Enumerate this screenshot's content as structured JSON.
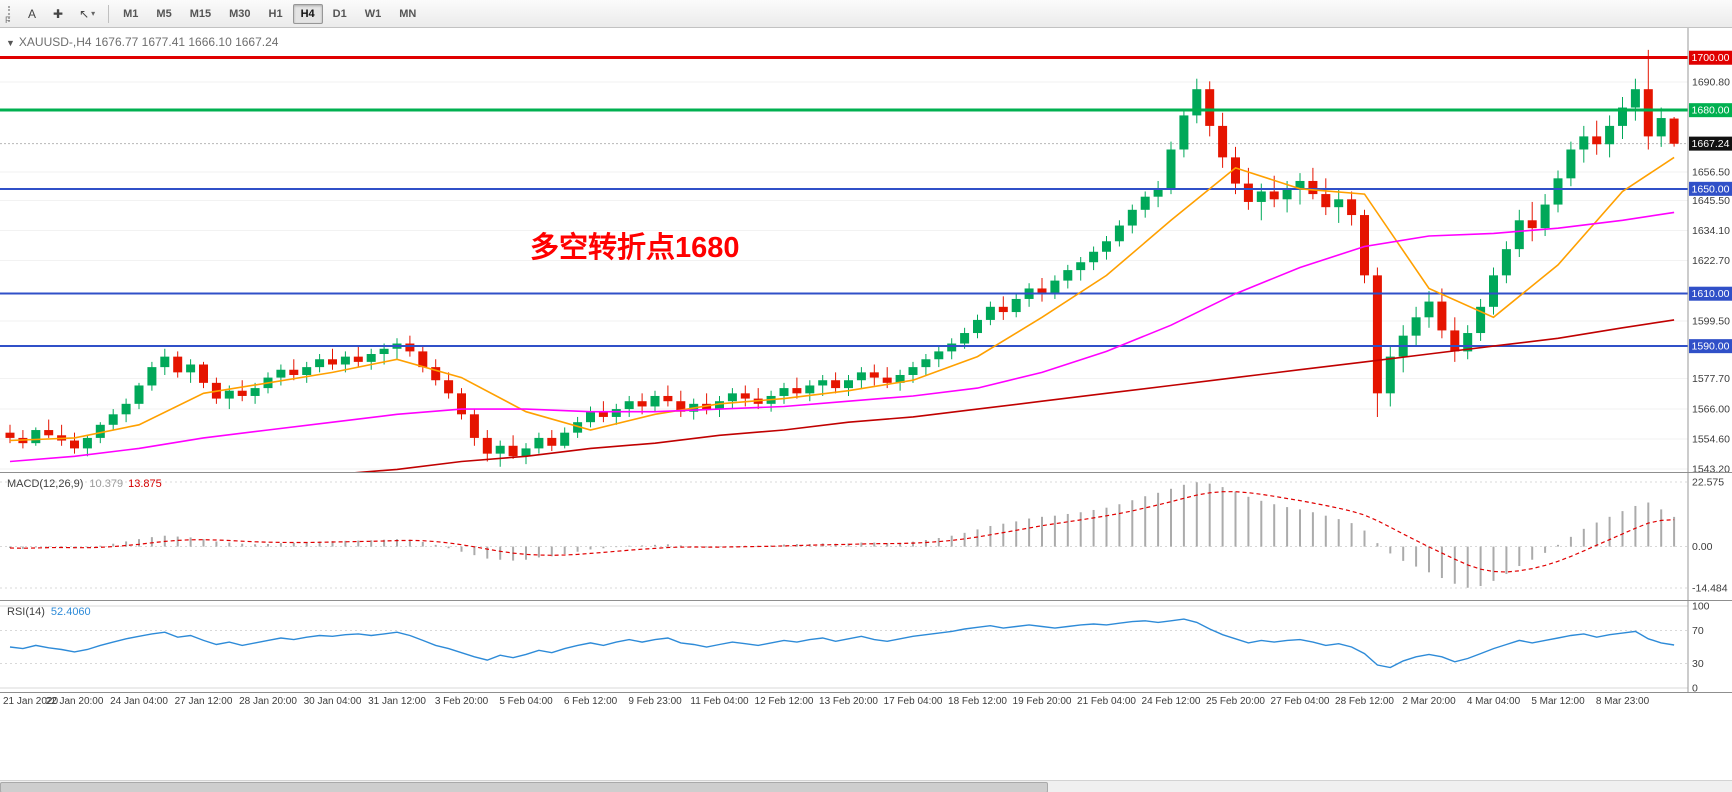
{
  "toolbar": {
    "f_label": "F",
    "text_tool_label": "A",
    "crosshair_icon": "✚",
    "arrows_icon": "↖",
    "chevron": "▾",
    "timeframes": [
      "M1",
      "M5",
      "M15",
      "M30",
      "H1",
      "H4",
      "D1",
      "W1",
      "MN"
    ],
    "active_timeframe": "H4"
  },
  "chart": {
    "menu_icon": "▼",
    "title_symbol": "XAUUSD-,H4",
    "title_ohlc": "1676.77 1677.41 1666.10 1667.24",
    "annotation": {
      "text": "多空转折点1680",
      "color": "#FF0000"
    }
  },
  "scrollbar": {
    "thumb_left": 0,
    "thumb_width": 1046
  },
  "chart_data": {
    "type": "candlestick",
    "symbol": "XAUUSD-",
    "timeframe": "H4",
    "current_bar": {
      "open": 1676.77,
      "high": 1677.41,
      "low": 1666.1,
      "close": 1667.24
    },
    "colors": {
      "bull": "#00A859",
      "bear": "#E51400",
      "grid": "#F2F2F2",
      "axis_text": "#3C3C3C"
    },
    "price_axis": {
      "min": 1542,
      "max": 1706,
      "ticks": [
        {
          "value": 1690.8,
          "label": "1690.80"
        },
        {
          "value": 1656.5,
          "label": "1656.50"
        },
        {
          "value": 1645.5,
          "label": "1645.50"
        },
        {
          "value": 1634.1,
          "label": "1634.10"
        },
        {
          "value": 1622.7,
          "label": "1622.70"
        },
        {
          "value": 1599.5,
          "label": "1599.50"
        },
        {
          "value": 1577.7,
          "label": "1577.70"
        },
        {
          "value": 1566.0,
          "label": "1566.00"
        },
        {
          "value": 1554.6,
          "label": "1554.60"
        },
        {
          "value": 1543.2,
          "label": "1543.20"
        }
      ]
    },
    "levels": [
      {
        "value": 1700.0,
        "label": "1700.00",
        "color": "#E00000",
        "width": 3
      },
      {
        "value": 1680.0,
        "label": "1680.00",
        "color": "#00B050",
        "width": 3
      },
      {
        "value": 1650.0,
        "label": "1650.00",
        "color": "#3050C8",
        "width": 2
      },
      {
        "value": 1610.0,
        "label": "1610.00",
        "color": "#3050C8",
        "width": 2
      },
      {
        "value": 1590.0,
        "label": "1590.00",
        "color": "#3050C8",
        "width": 2
      }
    ],
    "current_price": {
      "value": 1667.24,
      "label": "1667.24"
    },
    "candles": [
      [
        1557,
        1560,
        1553,
        1555
      ],
      [
        1555,
        1558,
        1551,
        1553
      ],
      [
        1553,
        1559,
        1552,
        1558
      ],
      [
        1558,
        1562,
        1555,
        1556
      ],
      [
        1556,
        1560,
        1552,
        1554
      ],
      [
        1554,
        1557,
        1549,
        1551
      ],
      [
        1551,
        1556,
        1548,
        1555
      ],
      [
        1555,
        1561,
        1553,
        1560
      ],
      [
        1560,
        1566,
        1558,
        1564
      ],
      [
        1564,
        1570,
        1561,
        1568
      ],
      [
        1568,
        1576,
        1566,
        1575
      ],
      [
        1575,
        1584,
        1573,
        1582
      ],
      [
        1582,
        1589,
        1579,
        1586
      ],
      [
        1586,
        1588,
        1578,
        1580
      ],
      [
        1580,
        1585,
        1576,
        1583
      ],
      [
        1583,
        1584,
        1574,
        1576
      ],
      [
        1576,
        1578,
        1568,
        1570
      ],
      [
        1570,
        1575,
        1566,
        1573
      ],
      [
        1573,
        1577,
        1569,
        1571
      ],
      [
        1571,
        1576,
        1568,
        1574
      ],
      [
        1574,
        1580,
        1572,
        1578
      ],
      [
        1578,
        1583,
        1575,
        1581
      ],
      [
        1581,
        1585,
        1577,
        1579
      ],
      [
        1579,
        1584,
        1576,
        1582
      ],
      [
        1582,
        1587,
        1580,
        1585
      ],
      [
        1585,
        1589,
        1581,
        1583
      ],
      [
        1583,
        1588,
        1580,
        1586
      ],
      [
        1586,
        1590,
        1582,
        1584
      ],
      [
        1584,
        1589,
        1581,
        1587
      ],
      [
        1587,
        1591,
        1583,
        1589
      ],
      [
        1589,
        1593,
        1585,
        1591
      ],
      [
        1591,
        1594,
        1586,
        1588
      ],
      [
        1588,
        1590,
        1580,
        1582
      ],
      [
        1582,
        1585,
        1575,
        1577
      ],
      [
        1577,
        1580,
        1570,
        1572
      ],
      [
        1572,
        1574,
        1562,
        1564
      ],
      [
        1564,
        1566,
        1552,
        1555
      ],
      [
        1555,
        1558,
        1546,
        1549
      ],
      [
        1549,
        1554,
        1544,
        1552
      ],
      [
        1552,
        1556,
        1547,
        1548
      ],
      [
        1548,
        1553,
        1545,
        1551
      ],
      [
        1551,
        1557,
        1549,
        1555
      ],
      [
        1555,
        1558,
        1550,
        1552
      ],
      [
        1552,
        1559,
        1551,
        1557
      ],
      [
        1557,
        1563,
        1555,
        1561
      ],
      [
        1561,
        1567,
        1559,
        1565
      ],
      [
        1565,
        1569,
        1561,
        1563
      ],
      [
        1563,
        1568,
        1560,
        1566
      ],
      [
        1566,
        1571,
        1563,
        1569
      ],
      [
        1569,
        1572,
        1564,
        1567
      ],
      [
        1567,
        1573,
        1565,
        1571
      ],
      [
        1571,
        1575,
        1567,
        1569
      ],
      [
        1569,
        1573,
        1563,
        1565
      ],
      [
        1565,
        1570,
        1562,
        1568
      ],
      [
        1568,
        1572,
        1564,
        1566
      ],
      [
        1566,
        1571,
        1563,
        1569
      ],
      [
        1569,
        1574,
        1566,
        1572
      ],
      [
        1572,
        1575,
        1567,
        1570
      ],
      [
        1570,
        1574,
        1566,
        1568
      ],
      [
        1568,
        1573,
        1565,
        1571
      ],
      [
        1571,
        1576,
        1568,
        1574
      ],
      [
        1574,
        1578,
        1570,
        1572
      ],
      [
        1572,
        1577,
        1569,
        1575
      ],
      [
        1575,
        1579,
        1571,
        1577
      ],
      [
        1577,
        1580,
        1572,
        1574
      ],
      [
        1574,
        1579,
        1571,
        1577
      ],
      [
        1577,
        1582,
        1574,
        1580
      ],
      [
        1580,
        1583,
        1575,
        1578
      ],
      [
        1578,
        1582,
        1574,
        1576
      ],
      [
        1576,
        1581,
        1573,
        1579
      ],
      [
        1579,
        1584,
        1576,
        1582
      ],
      [
        1582,
        1587,
        1579,
        1585
      ],
      [
        1585,
        1590,
        1582,
        1588
      ],
      [
        1588,
        1593,
        1585,
        1591
      ],
      [
        1591,
        1597,
        1589,
        1595
      ],
      [
        1595,
        1602,
        1593,
        1600
      ],
      [
        1600,
        1607,
        1598,
        1605
      ],
      [
        1605,
        1609,
        1600,
        1603
      ],
      [
        1603,
        1610,
        1601,
        1608
      ],
      [
        1608,
        1614,
        1605,
        1612
      ],
      [
        1612,
        1616,
        1607,
        1610
      ],
      [
        1610,
        1617,
        1608,
        1615
      ],
      [
        1615,
        1621,
        1612,
        1619
      ],
      [
        1619,
        1624,
        1615,
        1622
      ],
      [
        1622,
        1628,
        1619,
        1626
      ],
      [
        1626,
        1632,
        1623,
        1630
      ],
      [
        1630,
        1638,
        1628,
        1636
      ],
      [
        1636,
        1644,
        1633,
        1642
      ],
      [
        1642,
        1649,
        1639,
        1647
      ],
      [
        1647,
        1653,
        1643,
        1650
      ],
      [
        1650,
        1668,
        1648,
        1665
      ],
      [
        1665,
        1680,
        1662,
        1678
      ],
      [
        1678,
        1692,
        1675,
        1688
      ],
      [
        1688,
        1691,
        1670,
        1674
      ],
      [
        1674,
        1679,
        1658,
        1662
      ],
      [
        1662,
        1666,
        1648,
        1652
      ],
      [
        1652,
        1658,
        1642,
        1645
      ],
      [
        1645,
        1652,
        1638,
        1649
      ],
      [
        1649,
        1655,
        1643,
        1646
      ],
      [
        1646,
        1653,
        1641,
        1650
      ],
      [
        1650,
        1656,
        1644,
        1653
      ],
      [
        1653,
        1658,
        1646,
        1648
      ],
      [
        1648,
        1654,
        1640,
        1643
      ],
      [
        1643,
        1650,
        1637,
        1646
      ],
      [
        1646,
        1649,
        1636,
        1640
      ],
      [
        1640,
        1642,
        1614,
        1617
      ],
      [
        1617,
        1620,
        1563,
        1572
      ],
      [
        1572,
        1590,
        1567,
        1586
      ],
      [
        1586,
        1598,
        1580,
        1594
      ],
      [
        1594,
        1605,
        1590,
        1601
      ],
      [
        1601,
        1611,
        1597,
        1607
      ],
      [
        1607,
        1612,
        1593,
        1596
      ],
      [
        1596,
        1601,
        1584,
        1588
      ],
      [
        1588,
        1598,
        1585,
        1595
      ],
      [
        1595,
        1608,
        1592,
        1605
      ],
      [
        1605,
        1620,
        1602,
        1617
      ],
      [
        1617,
        1630,
        1614,
        1627
      ],
      [
        1627,
        1642,
        1624,
        1638
      ],
      [
        1638,
        1645,
        1630,
        1635
      ],
      [
        1635,
        1648,
        1632,
        1644
      ],
      [
        1644,
        1657,
        1641,
        1654
      ],
      [
        1654,
        1668,
        1651,
        1665
      ],
      [
        1665,
        1674,
        1660,
        1670
      ],
      [
        1670,
        1676,
        1663,
        1667
      ],
      [
        1667,
        1678,
        1662,
        1674
      ],
      [
        1674,
        1685,
        1669,
        1681
      ],
      [
        1681,
        1692,
        1676,
        1688
      ],
      [
        1688,
        1703,
        1665,
        1670
      ],
      [
        1670,
        1681,
        1666,
        1677
      ],
      [
        1676.8,
        1677.4,
        1666.1,
        1667.2
      ]
    ],
    "ma_bars": [
      0,
      5,
      10,
      15,
      20,
      25,
      30,
      35,
      40,
      45,
      50,
      55,
      60,
      65,
      70,
      75,
      80,
      85,
      90,
      95,
      100,
      105,
      110,
      115,
      120,
      125,
      129
    ],
    "moving_averages": [
      {
        "name": "fast",
        "color": "#FFA000",
        "points": [
          1554,
          1555,
          1560,
          1572,
          1576,
          1580,
          1585,
          1578,
          1565,
          1558,
          1564,
          1568,
          1570,
          1573,
          1577,
          1586,
          1601,
          1617,
          1638,
          1658,
          1650,
          1648,
          1612,
          1601,
          1621,
          1649,
          1662
        ]
      },
      {
        "name": "mid",
        "color": "#FF00FF",
        "points": [
          1546,
          1548,
          1551,
          1555,
          1558,
          1561,
          1564,
          1566,
          1566,
          1565,
          1565,
          1566,
          1567,
          1569,
          1571,
          1574,
          1580,
          1588,
          1598,
          1610,
          1620,
          1628,
          1632,
          1633,
          1635,
          1638,
          1641
        ]
      },
      {
        "name": "slow",
        "color": "#C00000",
        "points": [
          1528,
          1531,
          1534,
          1536,
          1539,
          1541,
          1543,
          1546,
          1548,
          1551,
          1553,
          1556,
          1558,
          1561,
          1563,
          1566,
          1569,
          1572,
          1575,
          1578,
          1581,
          1584,
          1587,
          1590,
          1593,
          1597,
          1600
        ]
      }
    ],
    "bars_per_label": 5,
    "x_labels": [
      "21 Jan 2020",
      "22 Jan 20:00",
      "24 Jan 04:00",
      "27 Jan 12:00",
      "28 Jan 20:00",
      "30 Jan 04:00",
      "31 Jan 12:00",
      "3 Feb 20:00",
      "5 Feb 04:00",
      "6 Feb 12:00",
      "9 Feb 23:00",
      "11 Feb 04:00",
      "12 Feb 12:00",
      "13 Feb 20:00",
      "17 Feb 04:00",
      "18 Feb 12:00",
      "19 Feb 20:00",
      "21 Feb 04:00",
      "24 Feb 12:00",
      "25 Feb 20:00",
      "27 Feb 04:00",
      "28 Feb 12:00",
      "2 Mar 20:00",
      "4 Mar 04:00",
      "5 Mar 12:00",
      "8 Mar 23:00"
    ],
    "macd": {
      "name": "MACD(12,26,9)",
      "main_value": "10.379",
      "signal_value": "13.875",
      "histogram_color": "#ABABAB",
      "signal_color": "#E00000",
      "signal_period": 9,
      "axis": [
        {
          "value": 22.575,
          "label": "22.575"
        },
        {
          "value": 0,
          "label": "0.00"
        },
        {
          "value": -14.484,
          "label": "-14.484"
        }
      ],
      "histogram": [
        -0.5,
        -0.8,
        -0.3,
        0.2,
        -0.2,
        -0.6,
        -0.4,
        0.3,
        1.0,
        1.8,
        2.6,
        3.3,
        3.8,
        3.5,
        3.2,
        2.6,
        1.8,
        1.4,
        1.0,
        0.8,
        0.9,
        1.2,
        1.3,
        1.5,
        1.8,
        1.9,
        2.0,
        2.1,
        2.2,
        2.4,
        2.6,
        2.4,
        1.6,
        0.6,
        -0.6,
        -1.8,
        -3.0,
        -4.2,
        -4.6,
        -4.9,
        -4.6,
        -3.8,
        -3.4,
        -2.6,
        -1.8,
        -1.0,
        -0.6,
        -0.2,
        0.3,
        0.4,
        0.6,
        0.8,
        0.4,
        0.0,
        -0.3,
        -0.2,
        0.1,
        0.3,
        0.3,
        0.4,
        0.7,
        0.9,
        0.9,
        1.1,
        1.0,
        1.1,
        1.4,
        1.4,
        1.2,
        1.3,
        1.7,
        2.3,
        3.0,
        3.8,
        4.8,
        6.0,
        7.2,
        8.0,
        8.8,
        9.8,
        10.4,
        10.8,
        11.4,
        12.0,
        12.8,
        13.6,
        14.8,
        16.2,
        17.6,
        18.8,
        20.2,
        21.6,
        22.5,
        22.0,
        20.8,
        19.2,
        17.4,
        16.0,
        14.8,
        13.8,
        13.0,
        12.0,
        10.8,
        9.6,
        8.2,
        5.6,
        1.2,
        -2.4,
        -5.0,
        -7.0,
        -9.0,
        -11.0,
        -13.0,
        -14.4,
        -13.8,
        -12.0,
        -9.6,
        -6.8,
        -4.6,
        -2.2,
        0.6,
        3.4,
        6.2,
        8.4,
        10.4,
        12.4,
        14.2,
        15.4,
        13.0,
        10.379
      ]
    },
    "rsi": {
      "name": "RSI(14)",
      "value": "52.4060",
      "color": "#2E8BD8",
      "guide_levels": [
        70,
        30
      ],
      "axis": [
        {
          "value": 100,
          "label": "100"
        },
        {
          "value": 70,
          "label": "70"
        },
        {
          "value": 30,
          "label": "30"
        },
        {
          "value": 0,
          "label": "0"
        }
      ],
      "values": [
        50,
        48,
        52,
        49,
        47,
        44,
        47,
        52,
        56,
        60,
        63,
        66,
        68,
        62,
        64,
        58,
        53,
        56,
        52,
        55,
        58,
        61,
        59,
        62,
        64,
        63,
        65,
        66,
        64,
        66,
        68,
        64,
        58,
        52,
        48,
        43,
        38,
        34,
        40,
        37,
        41,
        46,
        43,
        48,
        52,
        55,
        52,
        56,
        59,
        56,
        59,
        61,
        55,
        53,
        50,
        53,
        56,
        54,
        52,
        55,
        58,
        56,
        59,
        61,
        57,
        60,
        63,
        59,
        57,
        60,
        63,
        65,
        67,
        69,
        72,
        74,
        76,
        73,
        75,
        77,
        75,
        73,
        75,
        77,
        78,
        77,
        79,
        81,
        82,
        80,
        82,
        84,
        80,
        72,
        65,
        60,
        55,
        58,
        56,
        58,
        59,
        56,
        52,
        54,
        50,
        42,
        28,
        25,
        33,
        38,
        41,
        38,
        32,
        36,
        42,
        48,
        53,
        58,
        55,
        58,
        61,
        64,
        66,
        62,
        65,
        67,
        69,
        60,
        55,
        52.4
      ]
    }
  }
}
